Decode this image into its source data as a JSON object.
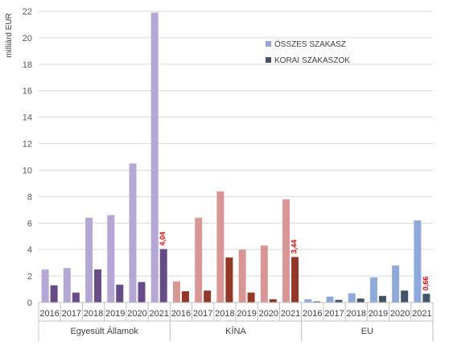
{
  "chart_data": {
    "type": "bar",
    "ylabel": "milliárd EUR",
    "ylim": [
      0,
      22
    ],
    "ytick_step": 2,
    "grid": true,
    "legend_position": "top-right",
    "legend": [
      {
        "key": "all",
        "label": "ÖSSZES SZAKASZ",
        "color": "#8EA9DB"
      },
      {
        "key": "early",
        "label": "KORAI SZAKASZOK",
        "color": "#44546A"
      }
    ],
    "groups": [
      {
        "name": "Egyesült Államok",
        "years": [
          "2016",
          "2017",
          "2018",
          "2019",
          "2020",
          "2021"
        ],
        "all_stages": [
          2.5,
          2.6,
          6.4,
          6.6,
          10.5,
          21.9
        ],
        "early_stages": [
          1.3,
          0.75,
          2.5,
          1.35,
          1.55,
          4.04
        ],
        "all_color": "#B4A7D6",
        "early_color": "#674C8A",
        "annotation": "4,04"
      },
      {
        "name": "KÍNA",
        "years": [
          "2016",
          "2017",
          "2018",
          "2019",
          "2020",
          "2021"
        ],
        "all_stages": [
          1.6,
          6.4,
          8.4,
          4.0,
          4.3,
          7.8
        ],
        "early_stages": [
          0.85,
          0.9,
          3.4,
          0.75,
          0.25,
          3.44
        ],
        "all_color": "#DA9694",
        "early_color": "#943726",
        "annotation": "3,44"
      },
      {
        "name": "EU",
        "years": [
          "2016",
          "2017",
          "2018",
          "2019",
          "2020",
          "2021"
        ],
        "all_stages": [
          0.25,
          0.45,
          0.7,
          1.9,
          2.8,
          6.2
        ],
        "early_stages": [
          0.08,
          0.2,
          0.3,
          0.5,
          0.9,
          0.66
        ],
        "all_color": "#8EA9DB",
        "early_color": "#44546A",
        "annotation": "0,66"
      }
    ],
    "annotation_color": "#FF0000"
  }
}
